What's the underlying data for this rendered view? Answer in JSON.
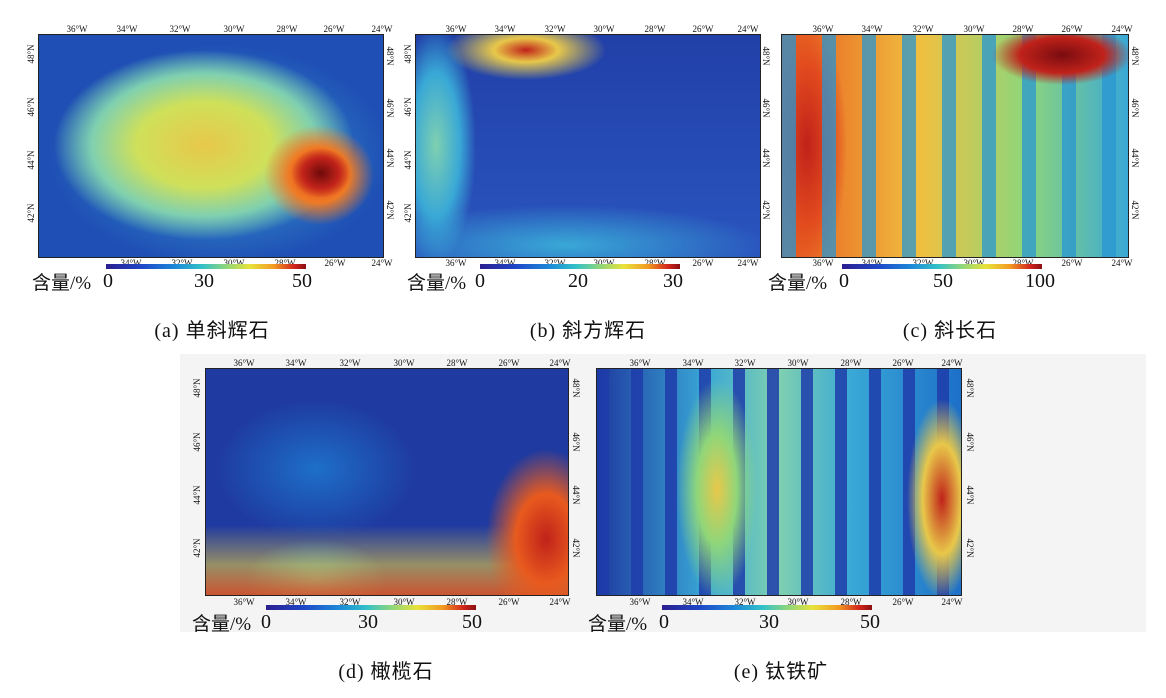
{
  "lon_ticks": [
    "36°W",
    "34°W",
    "32°W",
    "30°W",
    "28°W",
    "26°W",
    "24°W"
  ],
  "lat_ticks": [
    "48°N",
    "46°N",
    "44°N",
    "42°N"
  ],
  "legend_label": "含量/%",
  "panels": [
    {
      "caption": "(a)  单斜辉石",
      "ticks": [
        "0",
        "30",
        "50"
      ],
      "colors": "warm"
    },
    {
      "caption": "(b)  斜方辉石",
      "ticks": [
        "0",
        "20",
        "30"
      ],
      "colors": "cool"
    },
    {
      "caption": "(c)  斜长石",
      "ticks": [
        "0",
        "50",
        "100"
      ],
      "colors": "hot"
    },
    {
      "caption": "(d)  橄榄石",
      "ticks": [
        "0",
        "30",
        "50"
      ],
      "colors": "cool"
    },
    {
      "caption": "(e)  钛铁矿",
      "ticks": [
        "0",
        "30",
        "50"
      ],
      "colors": "cool"
    }
  ]
}
